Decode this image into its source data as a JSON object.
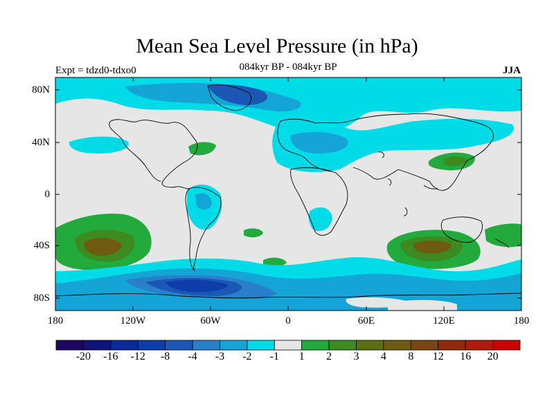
{
  "title": "Mean Sea Level Pressure (in hPa)",
  "subtitle_left": "Expt = tdzd0-tdxo0",
  "subtitle_center": "084kyr BP - 084kyr BP",
  "subtitle_right": "JJA",
  "lat_ticks": [
    "80N",
    "40N",
    "0",
    "40S",
    "80S"
  ],
  "lon_ticks": [
    "180",
    "120W",
    "60W",
    "0",
    "60E",
    "120E",
    "180"
  ],
  "colorbar": {
    "colors": [
      "#1c0860",
      "#10147a",
      "#0a2a98",
      "#0d3da8",
      "#1b58b5",
      "#2a7fca",
      "#14a5d6",
      "#00dbe8",
      "#e6e6e6",
      "#22aa3c",
      "#3d8a1e",
      "#5a6e14",
      "#6e5a10",
      "#7a4414",
      "#8e2a0a",
      "#b01c0c",
      "#cc0000"
    ],
    "labels": [
      "-20",
      "-16",
      "-12",
      "-8",
      "-4",
      "-3",
      "-2",
      "-1",
      "1",
      "2",
      "3",
      "4",
      "8",
      "12",
      "16",
      "20"
    ]
  },
  "map": {
    "background_color": "#e6e6e6",
    "ocean_neg1_color": "#00dbe8",
    "neg2_color": "#14a5d6",
    "neg3_color": "#2a7fca",
    "neg4_color": "#1b58b5",
    "neg8_color": "#0d3da8",
    "pos1_color": "#22aa3c",
    "pos2_color": "#3d8a1e",
    "pos4_color": "#6e5a10"
  }
}
